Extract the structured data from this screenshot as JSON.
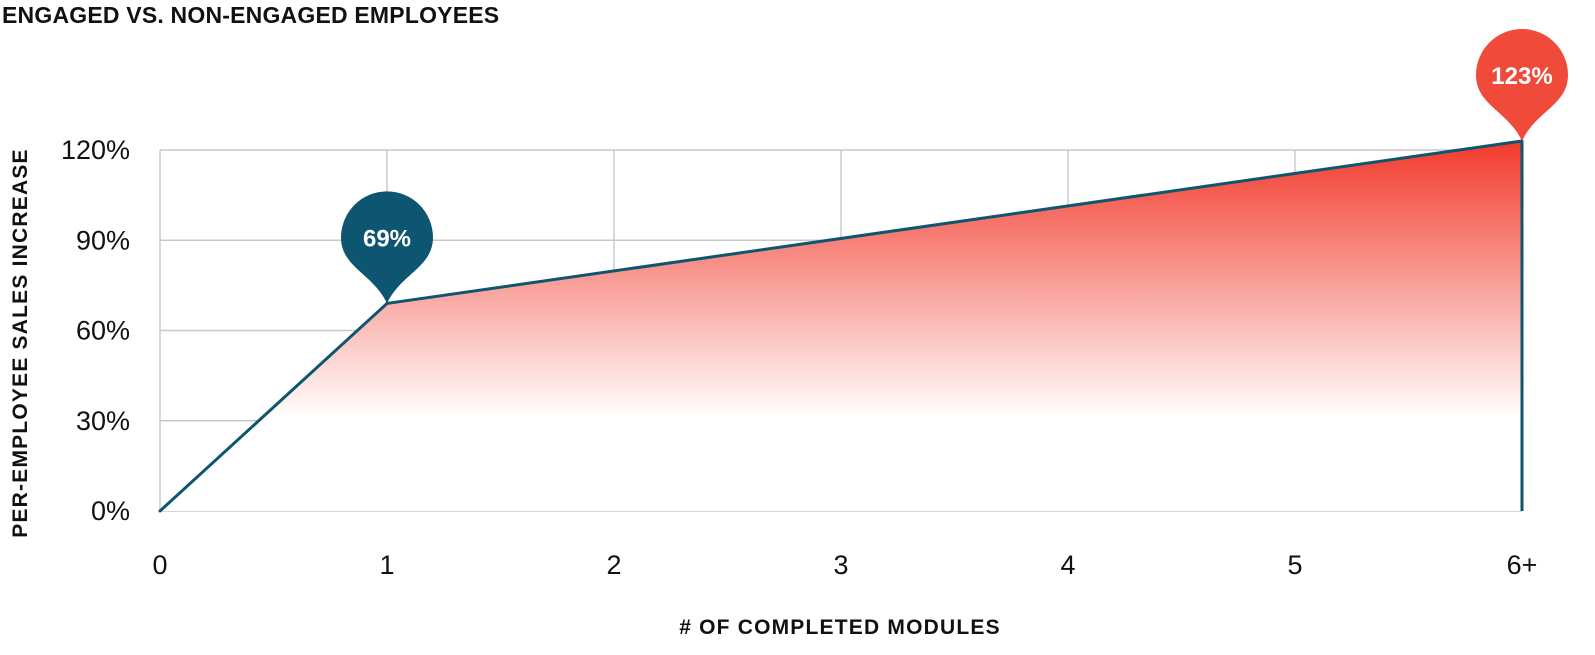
{
  "chart_data": {
    "type": "area",
    "title": "ENGAGED VS. NON-ENGAGED EMPLOYEES",
    "xlabel": "# OF COMPLETED MODULES",
    "ylabel": "PER-EMPLOYEE SALES INCREASE",
    "x_tick_labels": [
      "0",
      "1",
      "2",
      "3",
      "4",
      "5",
      "6+"
    ],
    "y_tick_labels": [
      "0%",
      "30%",
      "60%",
      "90%",
      "120%"
    ],
    "y_ticks": [
      0,
      30,
      60,
      90,
      120
    ],
    "ylim": [
      0,
      120
    ],
    "grid": true,
    "series": [
      {
        "x": [
          0,
          1,
          6
        ],
        "y": [
          0,
          69,
          123
        ]
      }
    ],
    "annotations": [
      {
        "x": 1,
        "y": 69,
        "text": "69%",
        "color": "#0d5570"
      },
      {
        "x": 6,
        "y": 123,
        "text": "123%",
        "color": "#f04a3a"
      }
    ],
    "colors": {
      "line": "#0d5570",
      "fill_top": "#f23a2c",
      "fill_bottom": "#ffffff",
      "grid": "#c8c8c8",
      "text": "#111111"
    }
  }
}
